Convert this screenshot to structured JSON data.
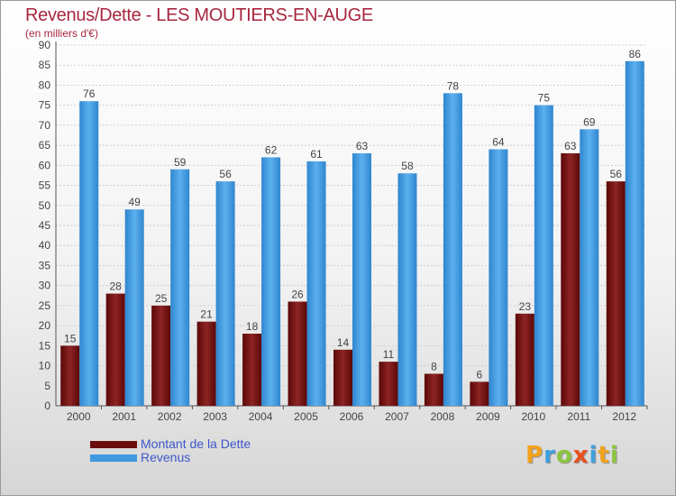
{
  "header": {
    "title": "Revenus/Dette - LES MOUTIERS-EN-AUGE",
    "subtitle": "(en milliers d'€)"
  },
  "legend": [
    {
      "label": "Montant de la Dette",
      "color": "#6b0d0d"
    },
    {
      "label": "Revenus",
      "color": "#3f99e0"
    }
  ],
  "logo": {
    "text": "Proxiti",
    "letters": [
      "P",
      "r",
      "o",
      "x",
      "i",
      "t",
      "i"
    ]
  },
  "chart_data": {
    "type": "bar",
    "title": "Revenus/Dette - LES MOUTIERS-EN-AUGE",
    "subtitle": "(en milliers d'€)",
    "xlabel": "",
    "ylabel": "",
    "ylim": [
      0,
      90
    ],
    "ytick_step": 5,
    "grid": true,
    "legend_position": "bottom-left",
    "categories": [
      "2000",
      "2001",
      "2002",
      "2003",
      "2004",
      "2005",
      "2006",
      "2007",
      "2008",
      "2009",
      "2010",
      "2011",
      "2012"
    ],
    "series": [
      {
        "name": "Montant de la Dette",
        "color": "#8a1c1c",
        "values": [
          15,
          28,
          25,
          21,
          18,
          26,
          14,
          11,
          8,
          6,
          23,
          63,
          56
        ]
      },
      {
        "name": "Revenus",
        "color": "#4aa3e8",
        "values": [
          76,
          49,
          59,
          56,
          62,
          61,
          63,
          58,
          78,
          64,
          75,
          69,
          86
        ]
      }
    ]
  }
}
